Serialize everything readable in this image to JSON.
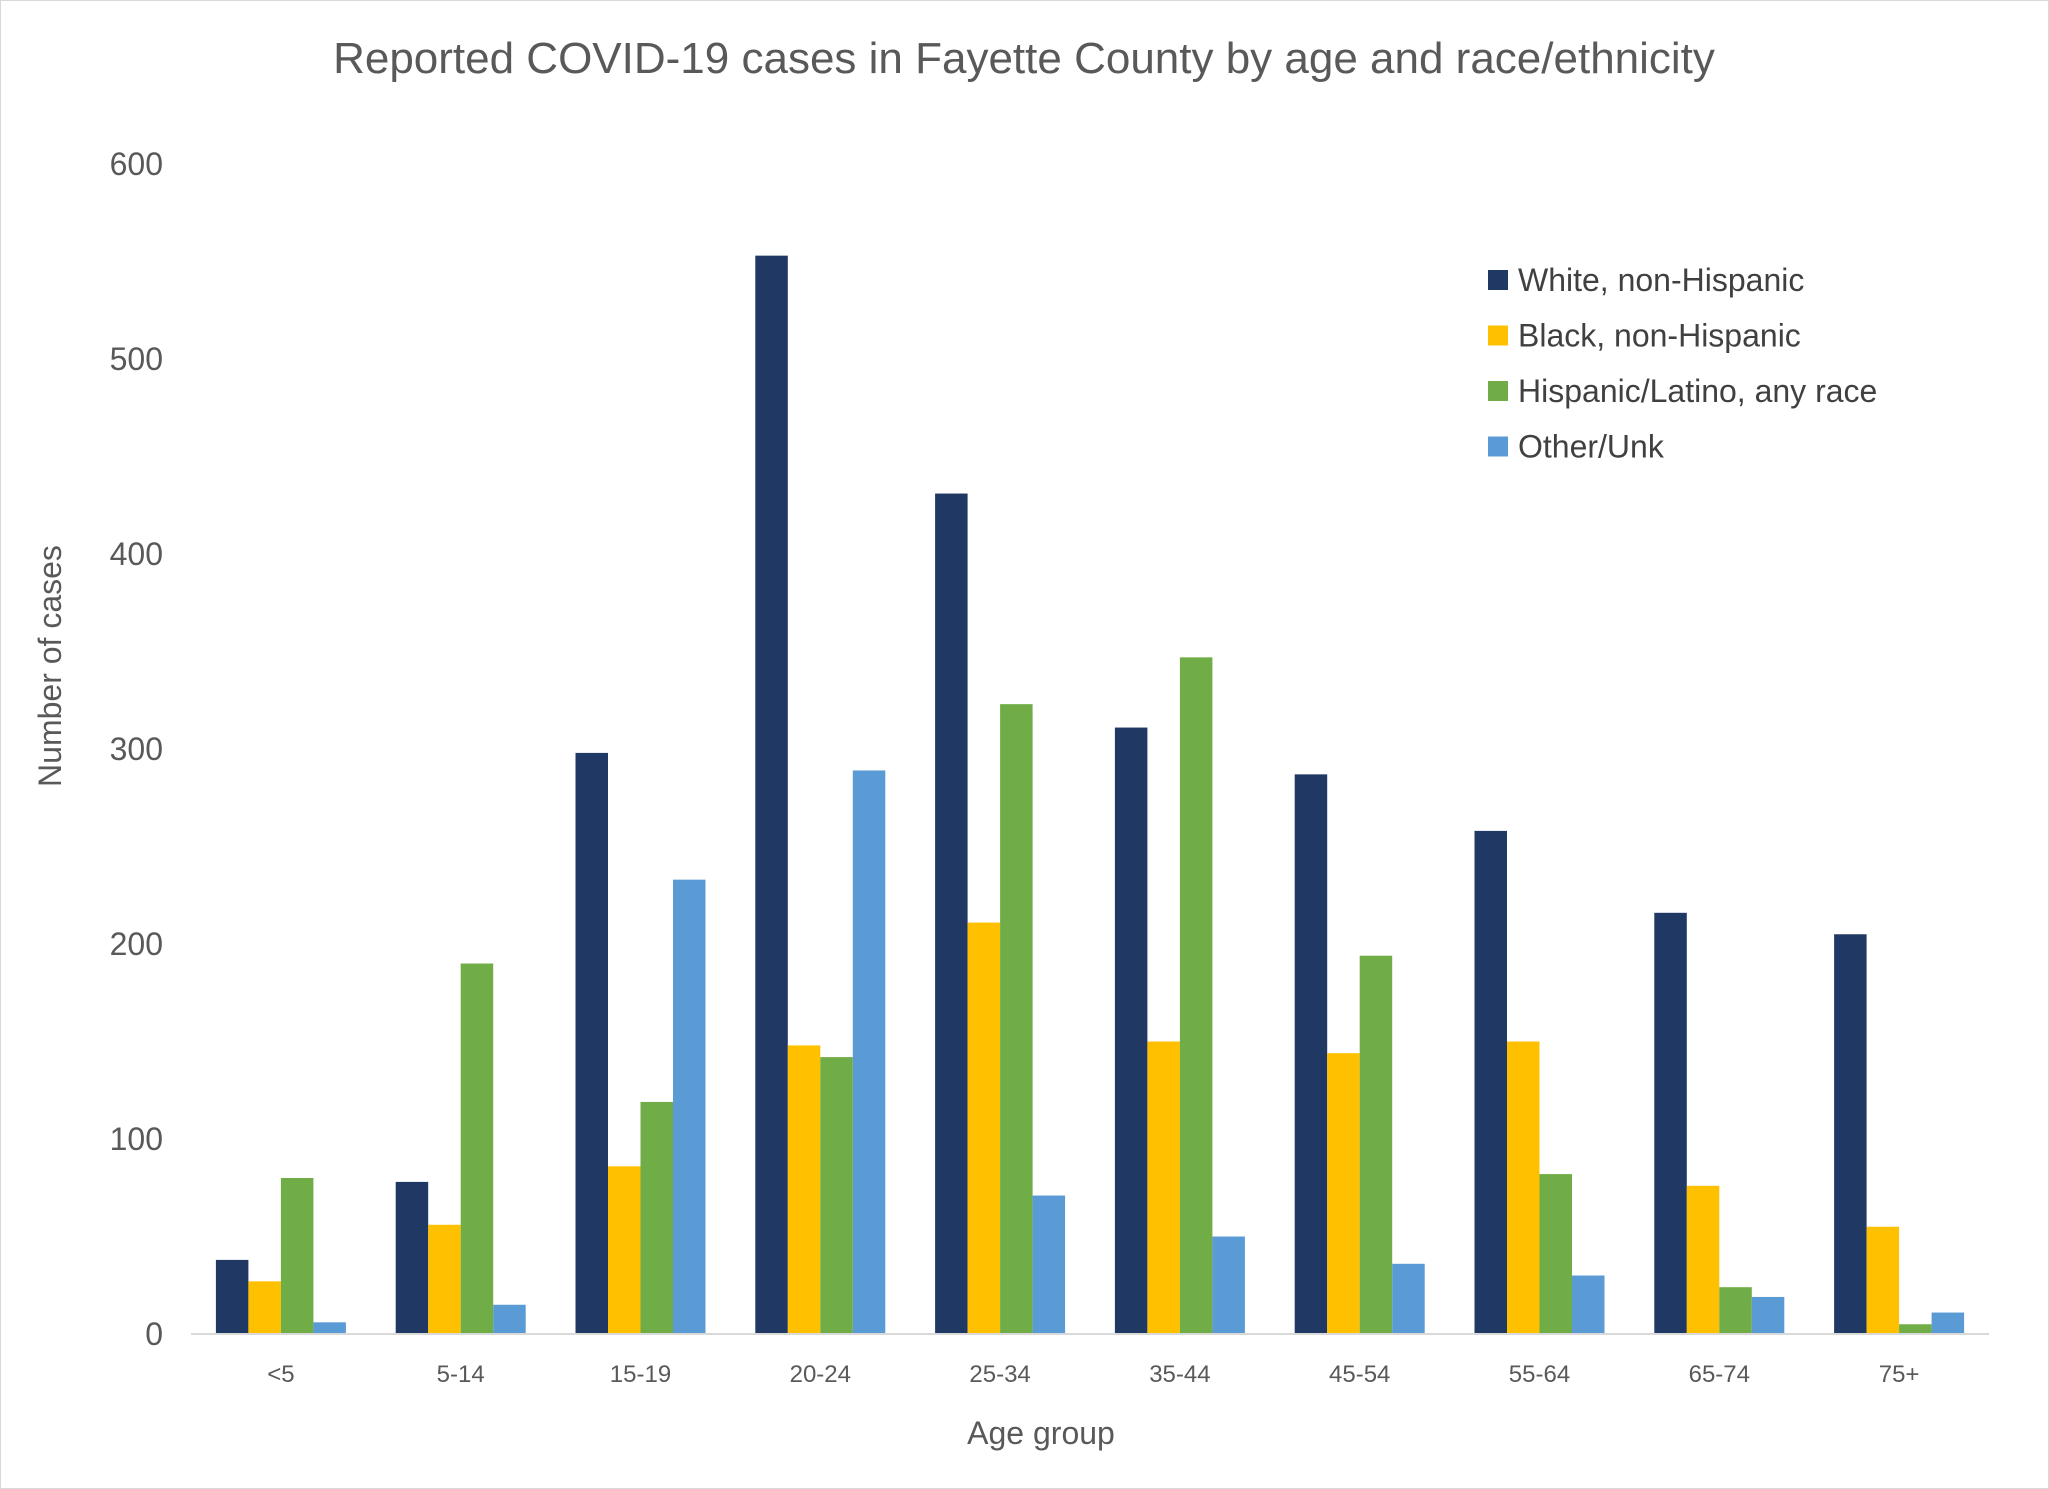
{
  "chart_data": {
    "type": "bar",
    "title": "Reported COVID-19 cases in Fayette County by age and race/ethnicity",
    "xlabel": "Age group",
    "ylabel": "Number of cases",
    "ylim": [
      0,
      600
    ],
    "yticks": [
      "0",
      "100",
      "200",
      "300",
      "400",
      "500",
      "600"
    ],
    "grid": false,
    "legend_position": "top-right",
    "categories": [
      "<5",
      "5-14",
      "15-19",
      "20-24",
      "25-34",
      "35-44",
      "45-54",
      "55-64",
      "65-74",
      "75+"
    ],
    "series": [
      {
        "name": "White, non-Hispanic",
        "color": "#203864",
        "values": [
          38,
          78,
          298,
          553,
          431,
          311,
          287,
          258,
          216,
          205
        ]
      },
      {
        "name": "Black, non-Hispanic",
        "color": "#FFC000",
        "values": [
          27,
          56,
          86,
          148,
          211,
          150,
          144,
          150,
          76,
          55
        ]
      },
      {
        "name": "Hispanic/Latino, any race",
        "color": "#70AD47",
        "values": [
          80,
          190,
          119,
          142,
          323,
          347,
          194,
          82,
          24,
          5
        ]
      },
      {
        "name": "Other/Unk",
        "color": "#5B9BD5",
        "values": [
          6,
          15,
          233,
          289,
          71,
          50,
          36,
          30,
          19,
          11
        ]
      }
    ]
  }
}
